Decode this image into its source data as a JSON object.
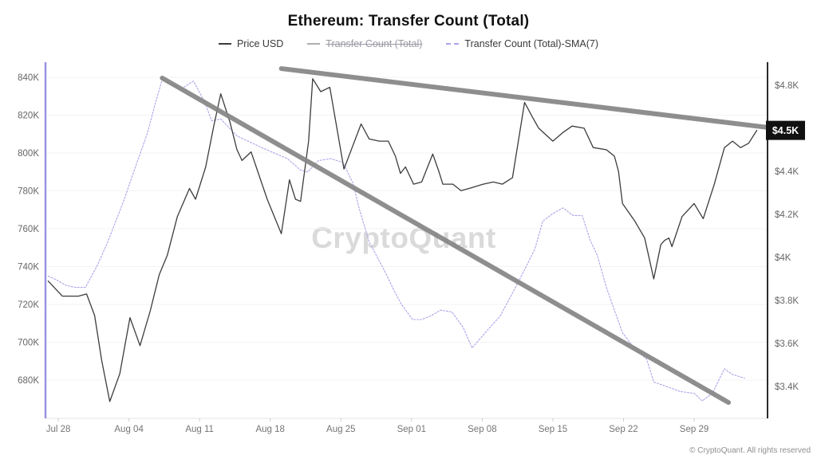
{
  "title": "Ethereum: Transfer Count (Total)",
  "watermark": "CryptoQuant",
  "copyright": "© CryptoQuant. All rights reserved",
  "price_badge": {
    "label": "$4.5K",
    "value": 4.59
  },
  "legend": [
    {
      "label": "Price USD",
      "color": "#3c3c3c",
      "dashed": false,
      "disabled": false
    },
    {
      "label": "Transfer Count (Total)",
      "color": "#aeaeae",
      "dashed": false,
      "disabled": true
    },
    {
      "label": "Transfer Count (Total)-SMA(7)",
      "color": "#aaa5e8",
      "dashed": true,
      "disabled": false
    }
  ],
  "chart_data": {
    "type": "line",
    "title": "Ethereum: Transfer Count (Total)",
    "x_unit": "days from Jul 27",
    "x_domain": [
      -0.27,
      71.27
    ],
    "grid": "horizontal-only",
    "x_ticks": [
      {
        "t": 1,
        "label": "Jul 28"
      },
      {
        "t": 8,
        "label": "Aug 04"
      },
      {
        "t": 15,
        "label": "Aug 11"
      },
      {
        "t": 22,
        "label": "Aug 18"
      },
      {
        "t": 29,
        "label": "Aug 25"
      },
      {
        "t": 36,
        "label": "Sep 01"
      },
      {
        "t": 43,
        "label": "Sep 08"
      },
      {
        "t": 50,
        "label": "Sep 15"
      },
      {
        "t": 57,
        "label": "Sep 22"
      },
      {
        "t": 64,
        "label": "Sep 29"
      }
    ],
    "left_axis": {
      "name": "Transfer Count (Total)-SMA(7)",
      "unit": "K transfers",
      "domain": [
        659.8,
        848
      ],
      "ticks": [
        {
          "v": 840,
          "label": "840K"
        },
        {
          "v": 820,
          "label": "820K"
        },
        {
          "v": 800,
          "label": "800K"
        },
        {
          "v": 780,
          "label": "780K"
        },
        {
          "v": 760,
          "label": "760K"
        },
        {
          "v": 740,
          "label": "740K"
        },
        {
          "v": 720,
          "label": "720K"
        },
        {
          "v": 700,
          "label": "700K"
        },
        {
          "v": 680,
          "label": "680K"
        }
      ]
    },
    "right_axis": {
      "name": "Price USD",
      "unit": "$K",
      "domain": [
        3.252,
        4.907
      ],
      "ticks": [
        {
          "v": 4.8,
          "label": "$4.8K"
        },
        {
          "v": 4.6,
          "label": "$4.6K"
        },
        {
          "v": 4.4,
          "label": "$4.4K"
        },
        {
          "v": 4.2,
          "label": "$4.2K"
        },
        {
          "v": 4.0,
          "label": "$4K"
        },
        {
          "v": 3.8,
          "label": "$3.8K"
        },
        {
          "v": 3.6,
          "label": "$3.6K"
        },
        {
          "v": 3.4,
          "label": "$3.4K"
        }
      ]
    },
    "series": [
      {
        "name": "Transfer Count (Total)-SMA(7)",
        "axis": "left",
        "color": "#aaa5e8",
        "width": 1.1,
        "dash": "2 2",
        "points": [
          [
            0,
            735
          ],
          [
            0.8,
            733
          ],
          [
            1.8,
            730
          ],
          [
            2.7,
            729
          ],
          [
            3.7,
            729
          ],
          [
            4.9,
            741
          ],
          [
            5.9,
            753
          ],
          [
            7.5,
            775
          ],
          [
            8.8,
            795
          ],
          [
            9.8,
            810
          ],
          [
            10.6,
            826
          ],
          [
            11.3,
            839
          ],
          [
            12.2,
            836
          ],
          [
            13.2,
            834
          ],
          [
            14.4,
            838
          ],
          [
            15.5,
            827
          ],
          [
            16.2,
            817
          ],
          [
            17.1,
            818
          ],
          [
            18.7,
            809
          ],
          [
            21.1,
            803
          ],
          [
            23.7,
            797
          ],
          [
            25,
            791
          ],
          [
            25.7,
            790
          ],
          [
            26.8,
            796
          ],
          [
            28,
            797
          ],
          [
            29.2,
            795
          ],
          [
            30.2,
            784
          ],
          [
            30.8,
            771
          ],
          [
            31.8,
            753
          ],
          [
            33.3,
            738
          ],
          [
            34.2,
            728
          ],
          [
            35,
            720
          ],
          [
            36.1,
            712
          ],
          [
            37,
            712
          ],
          [
            37.9,
            714
          ],
          [
            38.9,
            717
          ],
          [
            40,
            716
          ],
          [
            41.1,
            708
          ],
          [
            42,
            697
          ],
          [
            43.3,
            705
          ],
          [
            44.8,
            714
          ],
          [
            46.6,
            732
          ],
          [
            48.2,
            749
          ],
          [
            49,
            764
          ],
          [
            50,
            768
          ],
          [
            51,
            771
          ],
          [
            52,
            767
          ],
          [
            52.9,
            767
          ],
          [
            53.7,
            754
          ],
          [
            54.4,
            746
          ],
          [
            55.3,
            729
          ],
          [
            56.1,
            717
          ],
          [
            56.9,
            705
          ],
          [
            57.9,
            698
          ],
          [
            59.3,
            691
          ],
          [
            60,
            679
          ],
          [
            61.6,
            676
          ],
          [
            62.6,
            674
          ],
          [
            64,
            673
          ],
          [
            64.8,
            669
          ],
          [
            65.8,
            673
          ],
          [
            67,
            686
          ],
          [
            67.8,
            683
          ],
          [
            69,
            681
          ]
        ]
      },
      {
        "name": "Price USD",
        "axis": "right",
        "color": "#3c3c3c",
        "width": 1.3,
        "dash": "",
        "points": [
          [
            0,
            3.89
          ],
          [
            0.6,
            3.86
          ],
          [
            1.4,
            3.82
          ],
          [
            3,
            3.82
          ],
          [
            3.8,
            3.83
          ],
          [
            4.6,
            3.73
          ],
          [
            5.3,
            3.52
          ],
          [
            6.1,
            3.33
          ],
          [
            7.1,
            3.46
          ],
          [
            8.1,
            3.72
          ],
          [
            9.1,
            3.59
          ],
          [
            10.1,
            3.75
          ],
          [
            11,
            3.92
          ],
          [
            11.8,
            4.01
          ],
          [
            12.8,
            4.19
          ],
          [
            14,
            4.32
          ],
          [
            14.6,
            4.27
          ],
          [
            15.6,
            4.42
          ],
          [
            16.4,
            4.61
          ],
          [
            17.1,
            4.76
          ],
          [
            18,
            4.63
          ],
          [
            18.7,
            4.5
          ],
          [
            19.2,
            4.45
          ],
          [
            20.1,
            4.49
          ],
          [
            21.7,
            4.27
          ],
          [
            23.1,
            4.11
          ],
          [
            23.9,
            4.36
          ],
          [
            24.5,
            4.27
          ],
          [
            25,
            4.26
          ],
          [
            25.8,
            4.54
          ],
          [
            26.2,
            4.83
          ],
          [
            27,
            4.77
          ],
          [
            27.9,
            4.79
          ],
          [
            29.3,
            4.41
          ],
          [
            31,
            4.62
          ],
          [
            31.8,
            4.55
          ],
          [
            32.8,
            4.54
          ],
          [
            33.7,
            4.54
          ],
          [
            34.4,
            4.47
          ],
          [
            34.9,
            4.39
          ],
          [
            35.4,
            4.42
          ],
          [
            36.2,
            4.34
          ],
          [
            37,
            4.35
          ],
          [
            38.1,
            4.48
          ],
          [
            38.7,
            4.4
          ],
          [
            39.1,
            4.34
          ],
          [
            40.1,
            4.34
          ],
          [
            40.9,
            4.31
          ],
          [
            41.7,
            4.32
          ],
          [
            43.1,
            4.34
          ],
          [
            44.1,
            4.35
          ],
          [
            45,
            4.34
          ],
          [
            46,
            4.37
          ],
          [
            47.2,
            4.72
          ],
          [
            48,
            4.65
          ],
          [
            48.6,
            4.6
          ],
          [
            50,
            4.54
          ],
          [
            51,
            4.58
          ],
          [
            51.9,
            4.61
          ],
          [
            53.1,
            4.6
          ],
          [
            54,
            4.51
          ],
          [
            55.3,
            4.5
          ],
          [
            56.1,
            4.47
          ],
          [
            56.5,
            4.4
          ],
          [
            56.9,
            4.25
          ],
          [
            58.1,
            4.17
          ],
          [
            59.1,
            4.09
          ],
          [
            60,
            3.9
          ],
          [
            60.7,
            4.06
          ],
          [
            61.1,
            4.08
          ],
          [
            61.5,
            4.09
          ],
          [
            61.8,
            4.05
          ],
          [
            62.8,
            4.19
          ],
          [
            64,
            4.25
          ],
          [
            64.9,
            4.18
          ],
          [
            66,
            4.34
          ],
          [
            67,
            4.51
          ],
          [
            67.8,
            4.54
          ],
          [
            68.6,
            4.51
          ],
          [
            69.4,
            4.53
          ],
          [
            70.2,
            4.59
          ]
        ]
      }
    ],
    "annotations": [
      {
        "name": "upper-trendline",
        "axis": "left",
        "color": "#858585",
        "width": 6,
        "points": [
          [
            23.1,
            844.6
          ],
          [
            71.3,
            813.5
          ]
        ]
      },
      {
        "name": "lower-trendline",
        "axis": "left",
        "color": "#858585",
        "width": 6,
        "points": [
          [
            11.3,
            839.6
          ],
          [
            67.4,
            668.2
          ]
        ]
      }
    ],
    "colors": {
      "price_line": "#3c3c3c",
      "sma_line": "#aaa5e8",
      "left_axis_line": "#9a93e2",
      "right_axis_line": "#2a2a2a",
      "trendline": "#858585",
      "grid": "#f3f3f3",
      "axis_tick_text": "#666666",
      "x_tick_text": "#757575",
      "tick_mark": "#cccccc",
      "bottom_axis_line": "#e6e6e6",
      "badge_bg": "#111111",
      "badge_text": "#ffffff"
    }
  }
}
